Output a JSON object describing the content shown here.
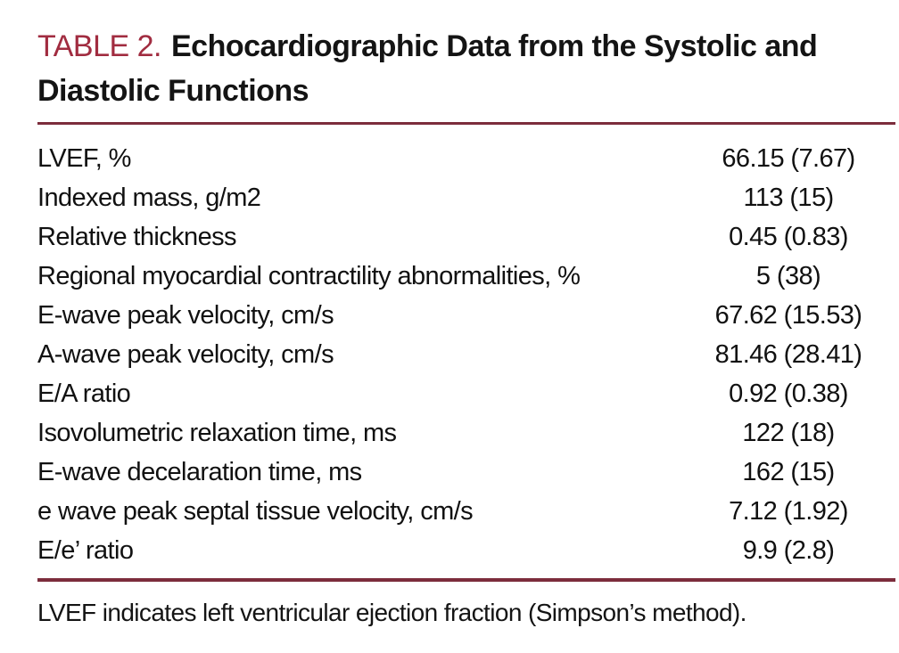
{
  "table": {
    "label": "TABLE 2.",
    "title": "Echocardiographic Data from the Systolic and Diastolic Functions",
    "rows": [
      {
        "label": "LVEF, %",
        "value": "66.15 (7.67)"
      },
      {
        "label": "Indexed mass, g/m2",
        "value": "113 (15)"
      },
      {
        "label": "Relative thickness",
        "value": "0.45 (0.83)"
      },
      {
        "label": "Regional myocardial contractility abnormalities, %",
        "value": "5 (38)"
      },
      {
        "label": "E-wave peak velocity, cm/s",
        "value": "67.62 (15.53)"
      },
      {
        "label": "A-wave peak velocity, cm/s",
        "value": "81.46 (28.41)"
      },
      {
        "label": "E/A ratio",
        "value": "0.92 (0.38)"
      },
      {
        "label": "Isovolumetric relaxation time, ms",
        "value": "122 (18)"
      },
      {
        "label": "E-wave decelaration time, ms",
        "value": "162 (15)"
      },
      {
        "label": "e wave peak septal tissue velocity, cm/s",
        "value": "7.12 (1.92)"
      },
      {
        "label": "E/e’ ratio",
        "value": "9.9 (2.8)"
      }
    ],
    "footnote": "LVEF indicates left ventricular ejection fraction (Simpson’s method).",
    "colors": {
      "table_label_red": "#a12c40",
      "rule_maroon": "#7c2d3c",
      "body_text": "#141414",
      "background": "#ffffff"
    }
  }
}
